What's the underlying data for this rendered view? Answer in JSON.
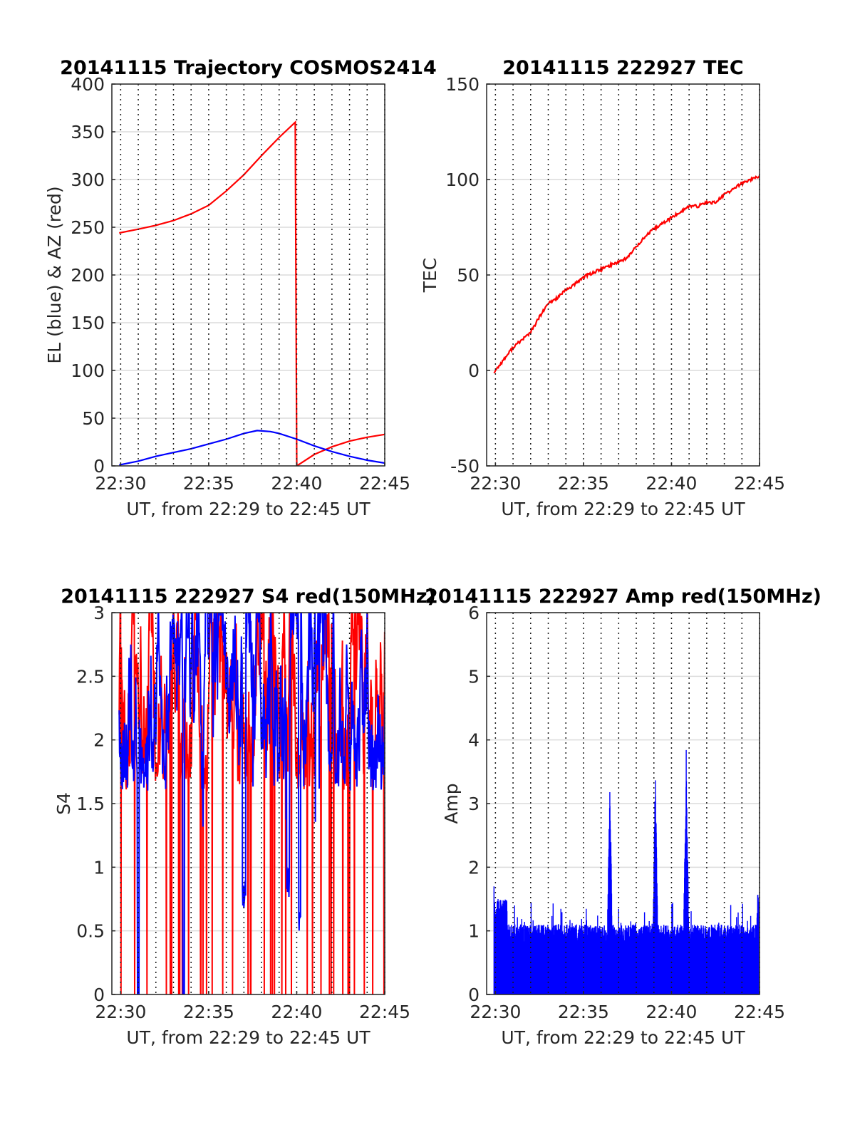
{
  "figure": {
    "background": "#ffffff"
  },
  "chart_data": [
    {
      "type": "line",
      "title": "20141115 Trajectory COSMOS2414",
      "xlabel": "UT, from 22:29 to 22:45 UT",
      "ylabel": "EL (blue) & AZ (red)",
      "xlim": [
        "22:29:30",
        "22:45:00"
      ],
      "ylim": [
        0,
        400
      ],
      "xticks": [
        "22:30",
        "22:35",
        "22:40",
        "22:45"
      ],
      "yticks": [
        "0",
        "50",
        "100",
        "150",
        "200",
        "250",
        "300",
        "350",
        "400"
      ],
      "grid": true,
      "series": [
        {
          "color": "#ff0000",
          "x": [
            "22:29:55",
            "22:31:00",
            "22:32:00",
            "22:33:00",
            "22:34:00",
            "22:35:00",
            "22:36:00",
            "22:37:00",
            "22:38:00",
            "22:39:00",
            "22:39:55",
            "22:40:00",
            "22:41:00",
            "22:42:00",
            "22:43:00",
            "22:44:00",
            "22:45:00"
          ],
          "values": [
            244,
            248,
            252,
            257,
            264,
            273,
            288,
            305,
            325,
            344,
            360,
            0,
            12,
            20,
            26,
            30,
            33
          ]
        },
        {
          "color": "#0000ff",
          "x": [
            "22:29:55",
            "22:31:00",
            "22:32:00",
            "22:33:00",
            "22:34:00",
            "22:35:00",
            "22:36:00",
            "22:37:00",
            "22:37:45",
            "22:38:30",
            "22:39:00",
            "22:40:00",
            "22:41:00",
            "22:42:00",
            "22:43:00",
            "22:44:00",
            "22:45:00"
          ],
          "values": [
            1,
            5,
            10,
            14,
            18,
            23,
            28,
            34,
            37,
            36,
            34,
            28,
            21,
            15,
            10,
            6,
            3
          ]
        }
      ]
    },
    {
      "type": "line",
      "title": "20141115 222927 TEC",
      "xlabel": "UT, from 22:29 to 22:45 UT",
      "ylabel": "TEC",
      "xlim": [
        "22:29:30",
        "22:45:00"
      ],
      "ylim": [
        -50,
        150
      ],
      "xticks": [
        "22:30",
        "22:35",
        "22:40",
        "22:45"
      ],
      "yticks": [
        "-50",
        "0",
        "50",
        "100",
        "150"
      ],
      "grid": true,
      "series": [
        {
          "color": "#ff0000",
          "x": [
            "22:29:55",
            "22:30:30",
            "22:31:00",
            "22:31:30",
            "22:32:00",
            "22:32:30",
            "22:33:00",
            "22:33:30",
            "22:34:00",
            "22:34:30",
            "22:35:00",
            "22:35:30",
            "22:36:00",
            "22:36:30",
            "22:37:00",
            "22:37:30",
            "22:38:00",
            "22:38:30",
            "22:39:00",
            "22:39:30",
            "22:40:00",
            "22:40:30",
            "22:41:00",
            "22:41:30",
            "22:42:00",
            "22:42:30",
            "22:43:00",
            "22:43:30",
            "22:44:00",
            "22:44:30",
            "22:45:00"
          ],
          "values": [
            -1,
            6,
            12,
            16,
            20,
            28,
            35,
            38,
            42,
            45,
            49,
            51,
            53,
            55,
            57,
            59,
            65,
            70,
            74,
            77,
            80,
            83,
            86,
            86,
            88,
            88,
            92,
            95,
            98,
            100,
            102
          ]
        }
      ]
    },
    {
      "type": "line",
      "title": "20141115 222927 S4 red(150MHz)",
      "xlabel": "UT, from 22:29 to 22:45 UT",
      "ylabel": "S4",
      "xlim": [
        "22:29:30",
        "22:45:00"
      ],
      "ylim": [
        0,
        3
      ],
      "xticks": [
        "22:30",
        "22:35",
        "22:40",
        "22:45"
      ],
      "yticks": [
        "0",
        "0.5",
        "1",
        "1.5",
        "2",
        "2.5",
        "3"
      ],
      "grid": true,
      "series": [
        {
          "color": "#ff0000",
          "x_range": [
            "22:29:55",
            "22:45:00"
          ],
          "description": "noisy trace oscillating mostly between 1.6 and 3, frequently dropping to 0"
        },
        {
          "color": "#0000ff",
          "x_range": [
            "22:29:55",
            "22:45:00"
          ],
          "description": "noisy trace mostly between 1.7 and 3, dips to about 0.6 near 22:37 and 22:39:30, to 0 near 22:31 and 22:33:30"
        }
      ]
    },
    {
      "type": "line",
      "title": "20141115 222927 Amp red(150MHz)",
      "xlabel": "UT, from 22:29 to 22:45 UT",
      "ylabel": "Amp",
      "xlim": [
        "22:29:30",
        "22:45:00"
      ],
      "ylim": [
        0,
        6
      ],
      "xticks": [
        "22:30",
        "22:35",
        "22:40",
        "22:45"
      ],
      "yticks": [
        "0",
        "1",
        "2",
        "3",
        "4",
        "5",
        "6"
      ],
      "grid": true,
      "series": [
        {
          "color": "#0000ff",
          "x_range": [
            "22:29:55",
            "22:45:00"
          ],
          "description": "dense amplitude trace filling 0 to about 1, spikes near 22:36:30 (3.5), 22:39:05 (3.5) and 22:40:50 (4.0)",
          "peaks": [
            {
              "x": "22:29:55",
              "value": 1.75
            },
            {
              "x": "22:36:30",
              "value": 3.45
            },
            {
              "x": "22:39:05",
              "value": 3.5
            },
            {
              "x": "22:40:50",
              "value": 4.0
            },
            {
              "x": "22:44:55",
              "value": 1.75
            }
          ]
        }
      ]
    }
  ]
}
